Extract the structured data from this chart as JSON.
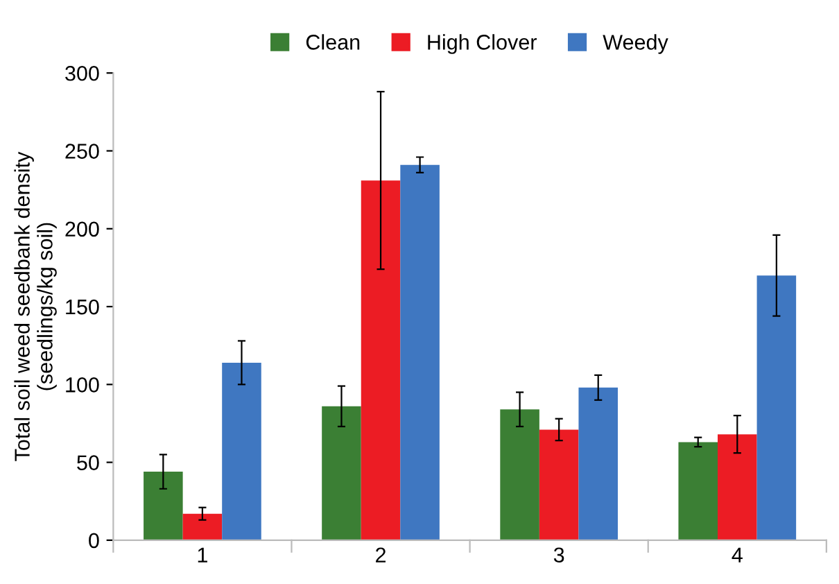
{
  "chart_data": {
    "type": "bar",
    "ylabel": "Total soil weed seedbank density\n(seedlings/kg soil)",
    "categories": [
      "1",
      "2",
      "3",
      "4"
    ],
    "series": [
      {
        "name": "Clean",
        "color": "#3b7f34",
        "values": [
          44,
          86,
          84,
          63
        ],
        "errors": [
          11,
          13,
          11,
          3
        ]
      },
      {
        "name": "High Clover",
        "color": "#ec1c24",
        "values": [
          17,
          231,
          71,
          68
        ],
        "errors": [
          4,
          57,
          7,
          12
        ]
      },
      {
        "name": "Weedy",
        "color": "#3f77c1",
        "values": [
          114,
          241,
          98,
          170
        ],
        "errors": [
          14,
          5,
          8,
          26
        ]
      }
    ],
    "ylim": [
      0,
      300
    ],
    "yticks": [
      0,
      50,
      100,
      150,
      200,
      250,
      300
    ],
    "grid": false,
    "legend": "top"
  }
}
